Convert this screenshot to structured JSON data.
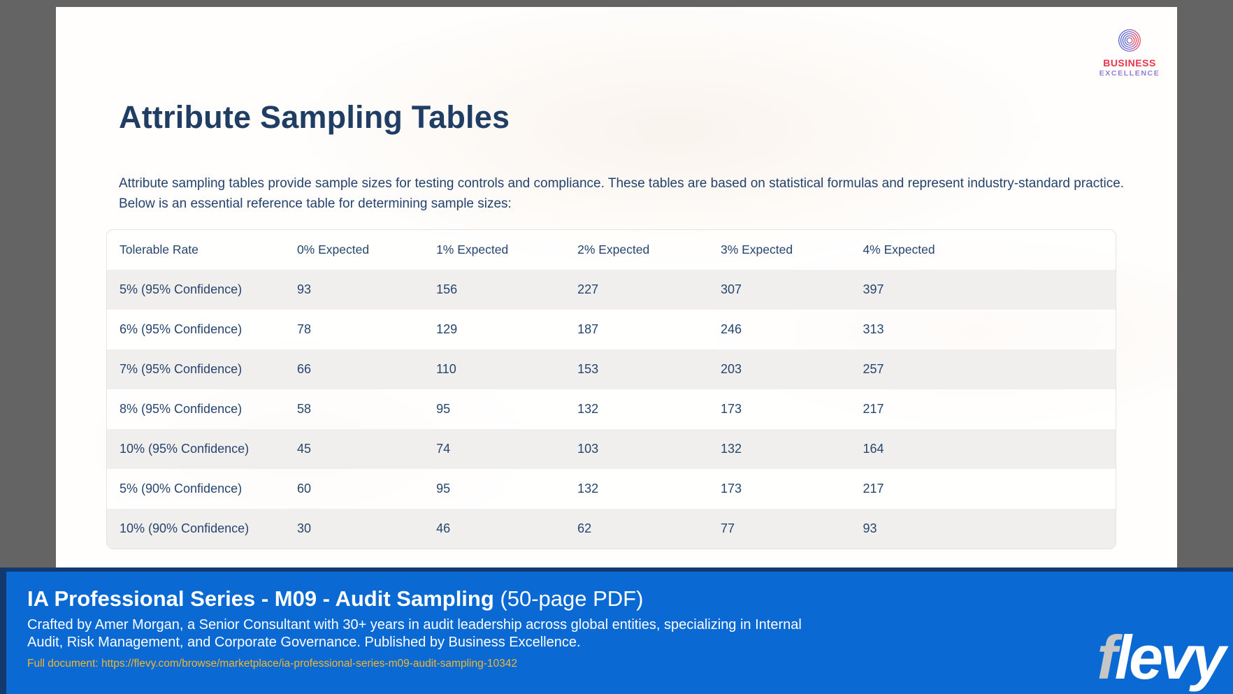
{
  "page": {
    "logo": {
      "line1": "BUSINESS",
      "line2": "EXCELLENCE"
    },
    "title": "Attribute Sampling Tables",
    "intro": "Attribute sampling tables provide sample sizes for testing controls and compliance. These tables are based on statistical formulas and represent industry-standard practice. Below is an essential reference table for determining sample sizes:",
    "table": {
      "headers": [
        "Tolerable Rate",
        "0% Expected",
        "1% Expected",
        "2% Expected",
        "3% Expected",
        "4% Expected"
      ],
      "rows": [
        [
          "5% (95% Confidence)",
          "93",
          "156",
          "227",
          "307",
          "397"
        ],
        [
          "6% (95% Confidence)",
          "78",
          "129",
          "187",
          "246",
          "313"
        ],
        [
          "7% (95% Confidence)",
          "66",
          "110",
          "153",
          "203",
          "257"
        ],
        [
          "8% (95% Confidence)",
          "58",
          "95",
          "132",
          "173",
          "217"
        ],
        [
          "10% (95% Confidence)",
          "45",
          "74",
          "103",
          "132",
          "164"
        ],
        [
          "5% (90% Confidence)",
          "60",
          "95",
          "132",
          "173",
          "217"
        ],
        [
          "10% (90% Confidence)",
          "30",
          "46",
          "62",
          "77",
          "93"
        ]
      ]
    }
  },
  "footer": {
    "title_bold": "IA Professional Series - M09 - Audit Sampling",
    "title_suffix": " (50-page PDF)",
    "description": "Crafted by Amer Morgan, a Senior Consultant with 30+ years in audit leadership across global entities, specializing in Internal Audit, Risk Management, and Corporate Governance. Published by Business Excellence.",
    "link": "Full document: https://flevy.com/browse/marketplace/ia-professional-series-m09-audit-sampling-10342",
    "brand_f": "f",
    "brand_levy": "levy"
  },
  "colors": {
    "banner_blue": "#0a69d2",
    "banner_border_navy": "#123a6f",
    "text_navy": "#24426b",
    "stripe_gray": "#f1efed",
    "link_gold": "#f0b731",
    "logo_red": "#e8354d",
    "logo_purple": "#8d7fd6",
    "outer_gray": "#646464"
  }
}
